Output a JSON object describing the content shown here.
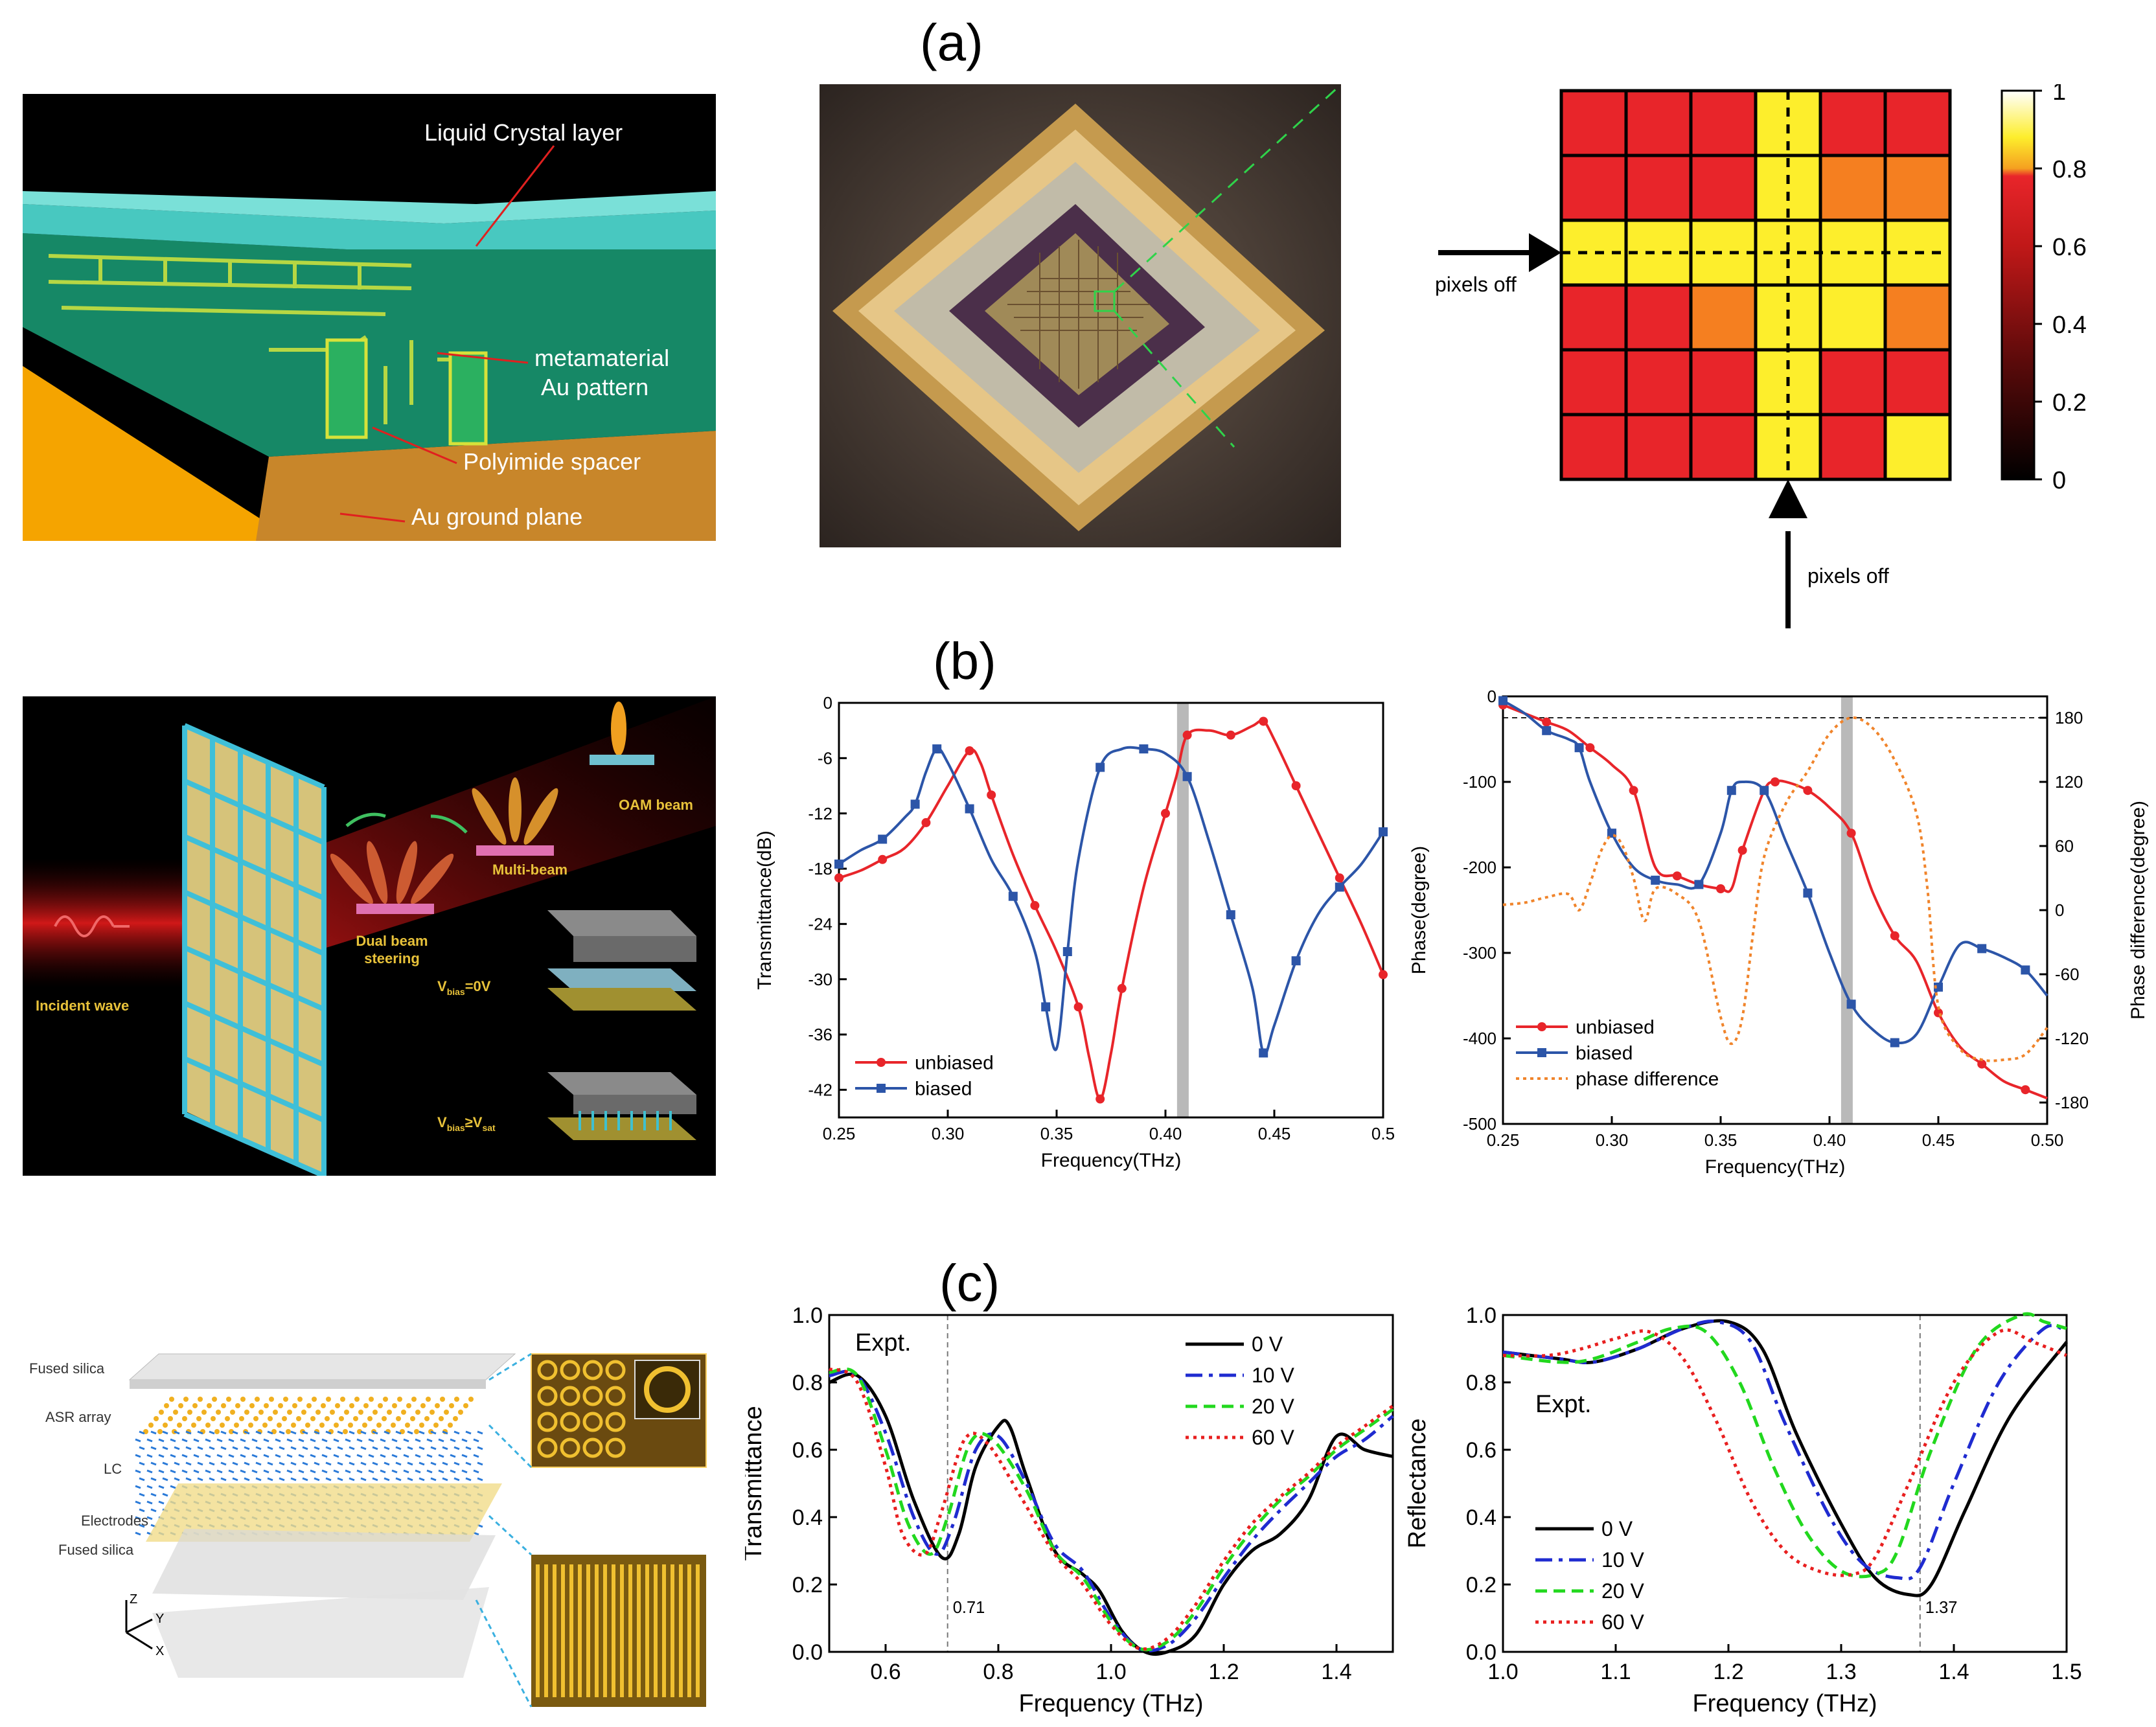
{
  "labels": {
    "a": "(a)",
    "b": "(b)",
    "c": "(c)"
  },
  "a1": {
    "liquid_crystal": "Liquid Crystal layer",
    "metamaterial_1": "metamaterial",
    "metamaterial_2": "Au pattern",
    "polyimide": "Polyimide spacer",
    "ground": "Au ground plane"
  },
  "a3": {
    "pixels_off_h": "pixels off",
    "pixels_off_v": "pixels off",
    "colorbar_ticks": [
      "1",
      "0.8",
      "0.6",
      "0.4",
      "0.2",
      "0"
    ],
    "grid": [
      [
        "r",
        "r",
        "r",
        "y",
        "r",
        "r"
      ],
      [
        "r",
        "r",
        "r",
        "y",
        "o",
        "o"
      ],
      [
        "y",
        "y",
        "y",
        "y",
        "y",
        "y"
      ],
      [
        "r",
        "r",
        "o",
        "y",
        "y",
        "o"
      ],
      [
        "r",
        "r",
        "r",
        "y",
        "r",
        "r"
      ],
      [
        "r",
        "r",
        "r",
        "y",
        "r",
        "y"
      ]
    ],
    "colors": {
      "r": "#e8252a",
      "o": "#f57f20",
      "y": "#fdee2c",
      "ly": "#fff170"
    }
  },
  "b1": {
    "oam": "OAM beam",
    "multi": "Multi-beam",
    "dual1": "Dual beam",
    "dual2": "steering",
    "incident": "Incident wave",
    "vbias0_main": "V",
    "vbias0_sub": "bias",
    "vbias0_tail": "=0V",
    "vbias1_main": "V",
    "vbias1_sub": "bias",
    "vbias1_tail": "≥V",
    "vbias1_sub2": "sat"
  },
  "chart_data": [
    {
      "type": "line",
      "id": "b2",
      "xlabel": "Frequency(THz)",
      "ylabel": "Transmittance(dB)",
      "xlim": [
        0.25,
        0.5
      ],
      "ylim": [
        -45,
        0
      ],
      "xticks": [
        "0.25",
        "0.30",
        "0.35",
        "0.40",
        "0.45",
        "0.5"
      ],
      "yticks": [
        "0",
        "-6",
        "-12",
        "-18",
        "-24",
        "-30",
        "-36",
        "-42"
      ],
      "highlight_x": 0.408,
      "series": [
        {
          "name": "unbiased",
          "color": "#e8252a",
          "marker": "circle",
          "x": [
            0.25,
            0.26,
            0.27,
            0.28,
            0.29,
            0.3,
            0.31,
            0.315,
            0.32,
            0.33,
            0.34,
            0.35,
            0.36,
            0.365,
            0.37,
            0.375,
            0.38,
            0.39,
            0.4,
            0.405,
            0.41,
            0.42,
            0.43,
            0.44,
            0.445,
            0.45,
            0.46,
            0.47,
            0.48,
            0.49,
            0.5
          ],
          "y": [
            -19,
            -18.2,
            -17,
            -15.8,
            -13,
            -9,
            -5.2,
            -6.5,
            -10,
            -16.5,
            -22,
            -27,
            -33,
            -38.5,
            -43,
            -38,
            -31,
            -20,
            -12,
            -8,
            -3.5,
            -3,
            -3.5,
            -2.5,
            -2,
            -4,
            -9,
            -14,
            -19,
            -24,
            -29.5
          ]
        },
        {
          "name": "biased",
          "color": "#2c55a8",
          "marker": "square",
          "x": [
            0.25,
            0.26,
            0.27,
            0.28,
            0.285,
            0.29,
            0.295,
            0.3,
            0.31,
            0.32,
            0.33,
            0.34,
            0.345,
            0.35,
            0.355,
            0.36,
            0.37,
            0.38,
            0.39,
            0.4,
            0.41,
            0.42,
            0.43,
            0.44,
            0.445,
            0.45,
            0.46,
            0.47,
            0.48,
            0.49,
            0.5
          ],
          "y": [
            -17.5,
            -16,
            -14.8,
            -12.5,
            -11,
            -7.5,
            -5,
            -6.5,
            -11.5,
            -17,
            -21,
            -27,
            -33,
            -37.5,
            -27,
            -17,
            -7,
            -5,
            -5,
            -5.5,
            -8,
            -15,
            -23,
            -31,
            -38,
            -35,
            -28,
            -23,
            -20,
            -17.5,
            -14
          ]
        }
      ]
    },
    {
      "type": "line",
      "id": "b3",
      "xlabel": "Frequency(THz)",
      "ylabel": "Phase(degree)",
      "ylabel_right": "Phase difference(degree)",
      "xlim": [
        0.25,
        0.5
      ],
      "ylim": [
        -500,
        0
      ],
      "ylim_right": [
        -200,
        200
      ],
      "xticks": [
        "0.25",
        "0.30",
        "0.35",
        "0.40",
        "0.45",
        "0.50"
      ],
      "yticks": [
        "0",
        "-100",
        "-200",
        "-300",
        "-400",
        "-500"
      ],
      "yticks_right": [
        "180",
        "120",
        "60",
        "0",
        "-60",
        "-120",
        "-180"
      ],
      "highlight_x": 0.408,
      "series": [
        {
          "name": "unbiased",
          "color": "#e8252a",
          "marker": "circle",
          "axis": "left",
          "x": [
            0.25,
            0.26,
            0.27,
            0.28,
            0.29,
            0.3,
            0.31,
            0.32,
            0.33,
            0.34,
            0.35,
            0.355,
            0.36,
            0.37,
            0.375,
            0.38,
            0.39,
            0.4,
            0.41,
            0.42,
            0.43,
            0.44,
            0.45,
            0.46,
            0.47,
            0.48,
            0.49,
            0.5
          ],
          "y": [
            -10,
            -20,
            -30,
            -40,
            -60,
            -80,
            -110,
            -200,
            -210,
            -220,
            -225,
            -225,
            -180,
            -110,
            -100,
            -100,
            -110,
            -130,
            -160,
            -230,
            -280,
            -310,
            -370,
            -410,
            -430,
            -450,
            -460,
            -470
          ]
        },
        {
          "name": "biased",
          "color": "#2c55a8",
          "marker": "square",
          "axis": "left",
          "x": [
            0.25,
            0.26,
            0.27,
            0.28,
            0.285,
            0.29,
            0.3,
            0.31,
            0.32,
            0.33,
            0.34,
            0.35,
            0.355,
            0.36,
            0.37,
            0.38,
            0.39,
            0.4,
            0.41,
            0.42,
            0.43,
            0.44,
            0.45,
            0.46,
            0.47,
            0.48,
            0.49,
            0.5
          ],
          "y": [
            -5,
            -20,
            -40,
            -50,
            -60,
            -100,
            -160,
            -200,
            -215,
            -220,
            -220,
            -160,
            -110,
            -100,
            -110,
            -170,
            -230,
            -300,
            -360,
            -390,
            -405,
            -395,
            -340,
            -290,
            -295,
            -305,
            -320,
            -350
          ]
        },
        {
          "name": "phase difference",
          "color": "#f0842b",
          "dashed": true,
          "axis": "right",
          "x": [
            0.25,
            0.26,
            0.27,
            0.28,
            0.285,
            0.29,
            0.295,
            0.3,
            0.305,
            0.31,
            0.315,
            0.32,
            0.33,
            0.34,
            0.35,
            0.355,
            0.36,
            0.365,
            0.37,
            0.38,
            0.39,
            0.4,
            0.41,
            0.42,
            0.43,
            0.44,
            0.445,
            0.45,
            0.46,
            0.47,
            0.48,
            0.49,
            0.5
          ],
          "y": [
            5,
            7,
            12,
            15,
            0,
            25,
            55,
            70,
            60,
            30,
            -10,
            20,
            15,
            -10,
            -100,
            -125,
            -100,
            -20,
            50,
            100,
            130,
            165,
            180,
            170,
            140,
            90,
            20,
            -90,
            -130,
            -140,
            -140,
            -135,
            -110
          ]
        }
      ],
      "ref_line_right": 180
    },
    {
      "type": "line",
      "id": "c2",
      "xlabel": "Frequency (THz)",
      "ylabel": "Transmittance",
      "annotation": "Expt.",
      "vline_x": 0.71,
      "vline_label": "0.71",
      "xlim": [
        0.5,
        1.5
      ],
      "ylim": [
        0,
        1.0
      ],
      "xticks": [
        "0.6",
        "0.8",
        "1.0",
        "1.2",
        "1.4"
      ],
      "yticks": [
        "0.0",
        "0.2",
        "0.4",
        "0.6",
        "0.8",
        "1.0"
      ],
      "series": [
        {
          "name": "0 V",
          "color": "#000000",
          "style": "solid",
          "x": [
            0.5,
            0.55,
            0.6,
            0.65,
            0.7,
            0.73,
            0.76,
            0.8,
            0.82,
            0.85,
            0.9,
            0.95,
            0.98,
            1.02,
            1.06,
            1.1,
            1.15,
            1.2,
            1.25,
            1.3,
            1.35,
            1.4,
            1.45,
            1.5
          ],
          "y": [
            0.8,
            0.82,
            0.7,
            0.45,
            0.28,
            0.35,
            0.55,
            0.67,
            0.67,
            0.52,
            0.3,
            0.23,
            0.18,
            0.06,
            0.0,
            0.0,
            0.05,
            0.2,
            0.3,
            0.35,
            0.45,
            0.64,
            0.6,
            0.58
          ]
        },
        {
          "name": "10 V",
          "color": "#1f2bd0",
          "style": "dashdot",
          "x": [
            0.5,
            0.55,
            0.6,
            0.65,
            0.69,
            0.72,
            0.76,
            0.8,
            0.85,
            0.9,
            0.95,
            1.0,
            1.05,
            1.1,
            1.15,
            1.2,
            1.25,
            1.3,
            1.35,
            1.4,
            1.45,
            1.5
          ],
          "y": [
            0.82,
            0.82,
            0.65,
            0.4,
            0.29,
            0.38,
            0.6,
            0.64,
            0.5,
            0.32,
            0.24,
            0.1,
            0.01,
            0.02,
            0.1,
            0.22,
            0.33,
            0.42,
            0.5,
            0.58,
            0.63,
            0.7
          ]
        },
        {
          "name": "20 V",
          "color": "#22d81e",
          "style": "dashed",
          "x": [
            0.5,
            0.55,
            0.6,
            0.64,
            0.68,
            0.71,
            0.75,
            0.79,
            0.85,
            0.9,
            0.95,
            1.0,
            1.05,
            1.1,
            1.15,
            1.2,
            1.25,
            1.3,
            1.35,
            1.4,
            1.45,
            1.5
          ],
          "y": [
            0.83,
            0.82,
            0.6,
            0.38,
            0.29,
            0.4,
            0.62,
            0.63,
            0.48,
            0.3,
            0.22,
            0.09,
            0.01,
            0.03,
            0.12,
            0.25,
            0.36,
            0.45,
            0.52,
            0.6,
            0.66,
            0.72
          ]
        },
        {
          "name": "60 V",
          "color": "#e81f1f",
          "style": "dotted",
          "x": [
            0.5,
            0.55,
            0.6,
            0.63,
            0.67,
            0.7,
            0.74,
            0.78,
            0.84,
            0.9,
            0.95,
            1.0,
            1.05,
            1.1,
            1.15,
            1.2,
            1.25,
            1.3,
            1.35,
            1.4,
            1.45,
            1.5
          ],
          "y": [
            0.84,
            0.8,
            0.55,
            0.35,
            0.29,
            0.42,
            0.63,
            0.62,
            0.46,
            0.29,
            0.2,
            0.08,
            0.01,
            0.04,
            0.14,
            0.27,
            0.38,
            0.46,
            0.53,
            0.61,
            0.67,
            0.73
          ]
        }
      ]
    },
    {
      "type": "line",
      "id": "c3",
      "xlabel": "Frequency (THz)",
      "ylabel": "Reflectance",
      "annotation": "Expt.",
      "vline_x": 1.37,
      "vline_label": "1.37",
      "xlim": [
        1.0,
        1.5
      ],
      "ylim": [
        0,
        1.0
      ],
      "xticks": [
        "1.0",
        "1.1",
        "1.2",
        "1.3",
        "1.4",
        "1.5"
      ],
      "yticks": [
        "0.0",
        "0.2",
        "0.4",
        "0.6",
        "0.8",
        "1.0"
      ],
      "series": [
        {
          "name": "0 V",
          "color": "#000000",
          "style": "solid",
          "x": [
            1.0,
            1.05,
            1.08,
            1.12,
            1.16,
            1.2,
            1.23,
            1.26,
            1.3,
            1.33,
            1.36,
            1.38,
            1.41,
            1.45,
            1.5
          ],
          "y": [
            0.89,
            0.87,
            0.86,
            0.9,
            0.96,
            0.98,
            0.9,
            0.65,
            0.38,
            0.22,
            0.17,
            0.2,
            0.42,
            0.7,
            0.92
          ]
        },
        {
          "name": "10 V",
          "color": "#1f2bd0",
          "style": "dashdot",
          "x": [
            1.0,
            1.05,
            1.08,
            1.12,
            1.16,
            1.19,
            1.22,
            1.25,
            1.29,
            1.32,
            1.35,
            1.37,
            1.4,
            1.44,
            1.48,
            1.5
          ],
          "y": [
            0.89,
            0.87,
            0.86,
            0.9,
            0.96,
            0.98,
            0.92,
            0.68,
            0.4,
            0.26,
            0.22,
            0.25,
            0.5,
            0.8,
            0.96,
            0.95
          ]
        },
        {
          "name": "20 V",
          "color": "#22d81e",
          "style": "dashed",
          "x": [
            1.0,
            1.05,
            1.08,
            1.12,
            1.15,
            1.18,
            1.21,
            1.24,
            1.27,
            1.3,
            1.33,
            1.35,
            1.38,
            1.42,
            1.46,
            1.48,
            1.5
          ],
          "y": [
            0.88,
            0.86,
            0.87,
            0.92,
            0.96,
            0.95,
            0.8,
            0.55,
            0.35,
            0.24,
            0.23,
            0.3,
            0.6,
            0.9,
            1.0,
            0.98,
            0.96
          ]
        },
        {
          "name": "60 V",
          "color": "#e81f1f",
          "style": "dotted",
          "x": [
            1.0,
            1.04,
            1.07,
            1.1,
            1.13,
            1.16,
            1.19,
            1.22,
            1.25,
            1.28,
            1.31,
            1.33,
            1.36,
            1.4,
            1.44,
            1.47,
            1.5
          ],
          "y": [
            0.88,
            0.88,
            0.9,
            0.93,
            0.95,
            0.87,
            0.68,
            0.45,
            0.3,
            0.24,
            0.23,
            0.28,
            0.5,
            0.8,
            0.95,
            0.92,
            0.88
          ]
        }
      ]
    }
  ],
  "c1": {
    "fused_top": "Fused silica",
    "asr": "ASR array",
    "lc": "LC",
    "electrodes": "Electrodes",
    "fused_bottom": "Fused silica",
    "axis_z": "Z",
    "axis_y": "Y",
    "axis_x": "X"
  }
}
